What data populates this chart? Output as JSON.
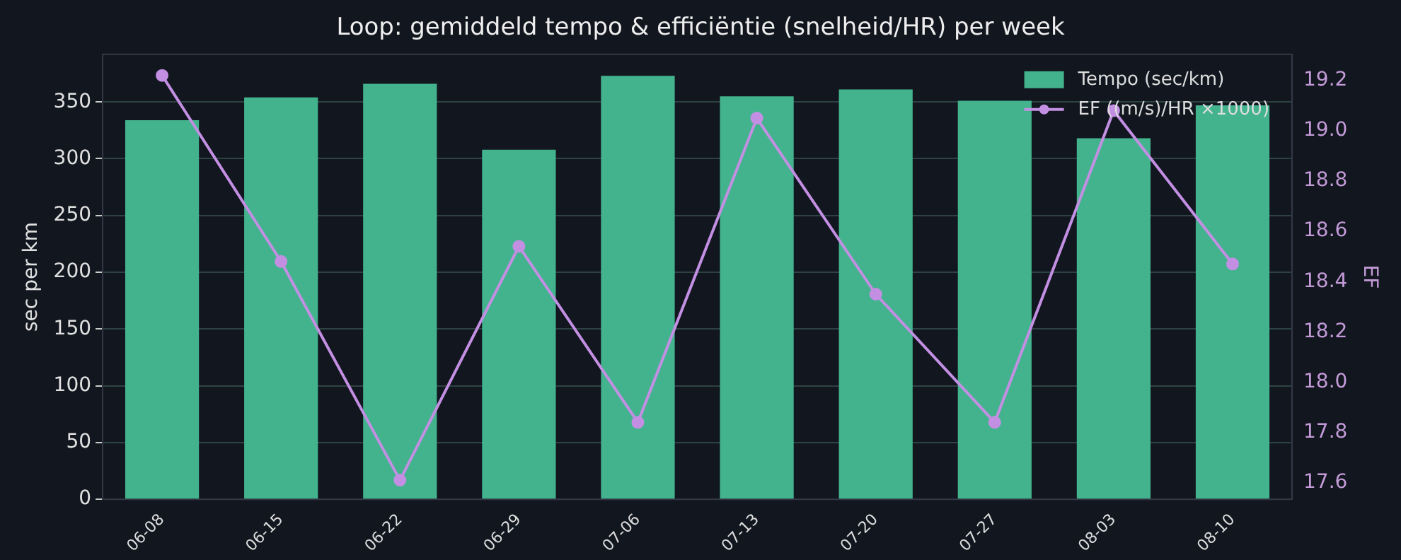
{
  "chart_data": {
    "type": "bar",
    "title": "Loop: gemiddeld tempo & efficiëntie (snelheid/HR) per week",
    "categories": [
      "06-08",
      "06-15",
      "06-22",
      "06-29",
      "07-06",
      "07-13",
      "07-20",
      "07-27",
      "08-03",
      "08-10"
    ],
    "series": [
      {
        "name": "Tempo (sec/km)",
        "color": "#43b38e",
        "values": [
          334,
          354,
          366,
          308,
          373,
          355,
          361,
          351,
          318,
          347
        ]
      },
      {
        "name": "EF ((m/s)/HR ×1000)",
        "type": "line",
        "axis": "y2",
        "color": "#c38fe3",
        "values": [
          19.22,
          18.48,
          17.61,
          18.54,
          17.84,
          19.05,
          18.35,
          17.84,
          19.08,
          18.47
        ]
      }
    ],
    "ylabel": "sec per km",
    "y2label": "EF",
    "ylim": [
      0,
      392
    ],
    "yticks": [
      0,
      50,
      100,
      150,
      200,
      250,
      300,
      350
    ],
    "y2lim": [
      17.534,
      19.304
    ],
    "y2ticks": [
      {
        "value": 17.6,
        "label": "17.6"
      },
      {
        "value": 17.8,
        "label": "17.8"
      },
      {
        "value": 18.0,
        "label": "18.0"
      },
      {
        "value": 18.2,
        "label": "18.2"
      },
      {
        "value": 18.4,
        "label": "18.4"
      },
      {
        "value": 18.6,
        "label": "18.6"
      },
      {
        "value": 18.8,
        "label": "18.8"
      },
      {
        "value": 19.0,
        "label": "19.0"
      },
      {
        "value": 19.2,
        "label": "19.2"
      }
    ],
    "grid": "y",
    "legend": "top right",
    "marker": "circle",
    "line_style": "solid"
  }
}
